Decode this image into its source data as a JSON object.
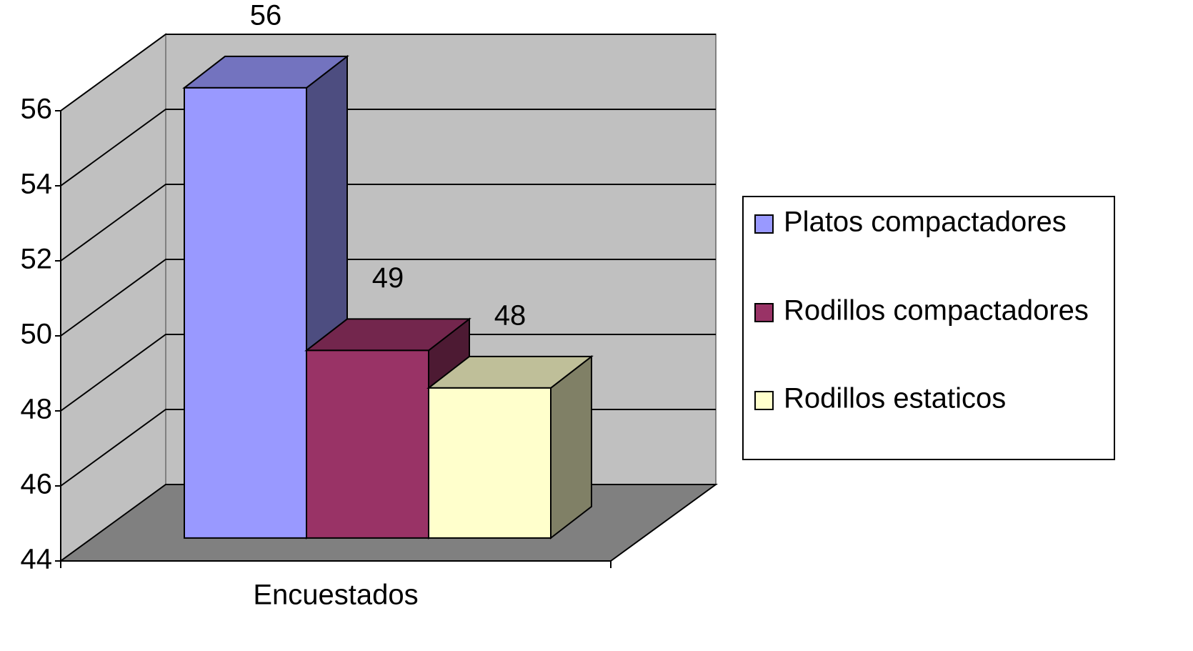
{
  "chart_data": {
    "type": "bar3d",
    "categories": [
      "Encuestados"
    ],
    "series": [
      {
        "name": "Platos compactadores",
        "color": "#9999ff",
        "values": [
          56
        ]
      },
      {
        "name": "Rodillos compactadores",
        "color": "#993366",
        "values": [
          49
        ]
      },
      {
        "name": "Rodillos estaticos",
        "color": "#ffffcc",
        "values": [
          48
        ]
      }
    ],
    "ylim": [
      44,
      56
    ],
    "yticks": [
      44,
      46,
      48,
      50,
      52,
      54,
      56
    ],
    "grid": true,
    "legend": "right"
  }
}
